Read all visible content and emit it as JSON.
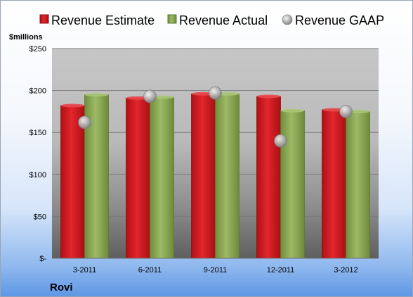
{
  "chart_data": {
    "type": "bar",
    "company": "Rovi",
    "ylabel": "$millions",
    "categories": [
      "3-2011",
      "6-2011",
      "9-2011",
      "12-2011",
      "3-2012"
    ],
    "series": [
      {
        "name": "Revenue Estimate",
        "kind": "bar",
        "color": "#d3191f",
        "values": [
          182,
          191,
          196,
          193,
          177
        ]
      },
      {
        "name": "Revenue Actual",
        "kind": "bar",
        "color": "#8cab55",
        "values": [
          195,
          192,
          196,
          176,
          175
        ]
      },
      {
        "name": "Revenue GAAP",
        "kind": "marker",
        "color": "#b9b9b9",
        "values": [
          162,
          193,
          197,
          140,
          175
        ]
      }
    ],
    "ylim": [
      0,
      250
    ],
    "yticks": [
      0,
      50,
      100,
      150,
      200,
      250
    ],
    "ytick_labels": [
      "$-",
      "$50",
      "$100",
      "$150",
      "$200",
      "$250"
    ],
    "legend": "top",
    "grid": true
  }
}
